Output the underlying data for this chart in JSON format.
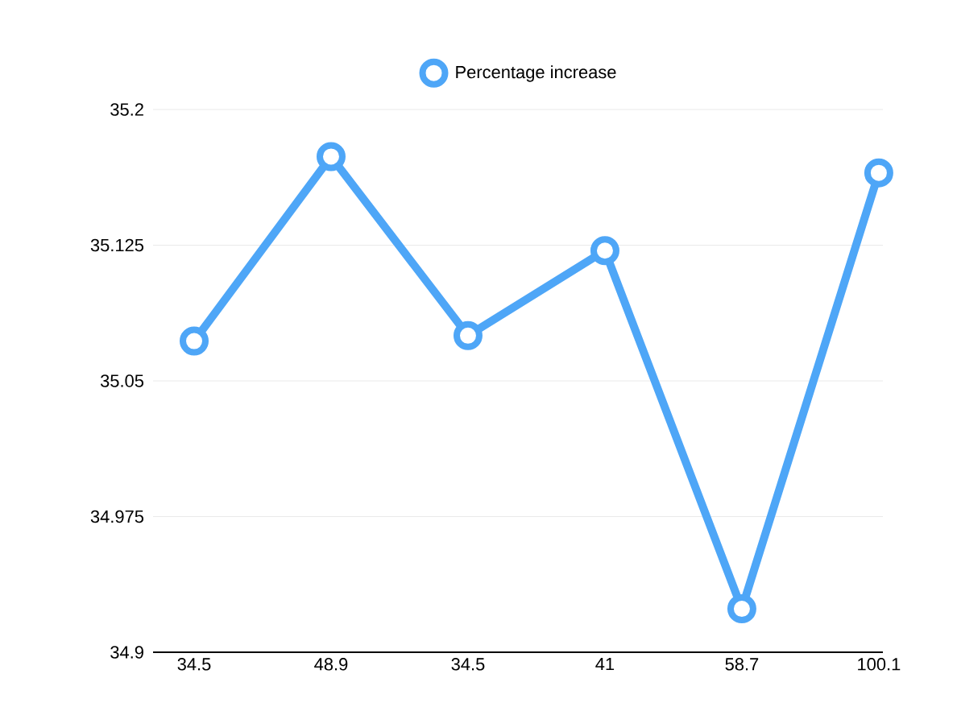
{
  "chart_data": {
    "type": "line",
    "categories": [
      "34.5",
      "48.9",
      "34.5",
      "41",
      "58.7",
      "100.1"
    ],
    "series": [
      {
        "name": "Percentage increase",
        "color": "#4ea6f7",
        "values": [
          35.072,
          35.174,
          35.075,
          35.122,
          34.924,
          35.165
        ]
      }
    ],
    "ylim": [
      34.9,
      35.2
    ],
    "yticks": [
      34.9,
      34.975,
      35.05,
      35.125,
      35.2
    ],
    "grid": "y",
    "legend": "top",
    "marker": "circle",
    "line_style": "solid"
  }
}
